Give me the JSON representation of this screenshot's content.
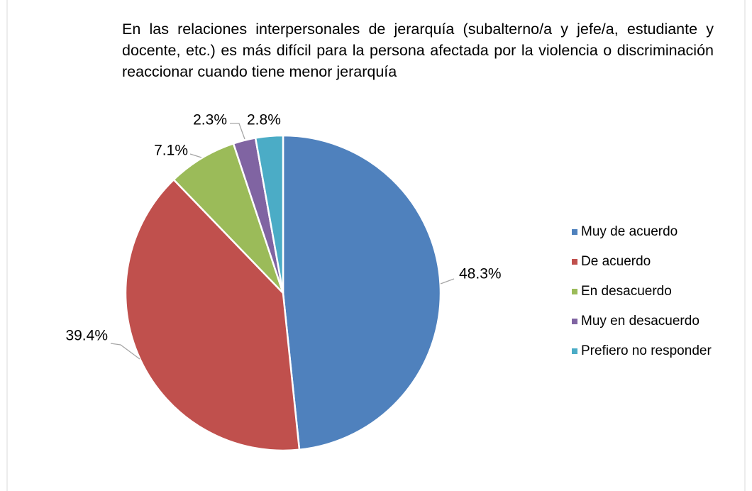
{
  "chart_data": {
    "type": "pie",
    "title": "En las relaciones interpersonales de jerarquía (subalterno/a y jefe/a, estudiante y docente, etc.) es más difícil para la persona afectada por la violencia o discriminación reaccionar cuando tiene menor jerarquía",
    "categories": [
      "Muy de acuerdo",
      "De acuerdo",
      "En desacuerdo",
      "Muy en desacuerdo",
      "Prefiero no responder"
    ],
    "values": [
      48.3,
      39.4,
      7.1,
      2.3,
      2.8
    ],
    "value_labels": [
      "48.3%",
      "39.4%",
      "7.1%",
      "2.3%",
      "2.8%"
    ],
    "colors": [
      "#4f81bd",
      "#c0504d",
      "#9bbb59",
      "#8064a2",
      "#4bacc6"
    ],
    "legend": "right"
  }
}
